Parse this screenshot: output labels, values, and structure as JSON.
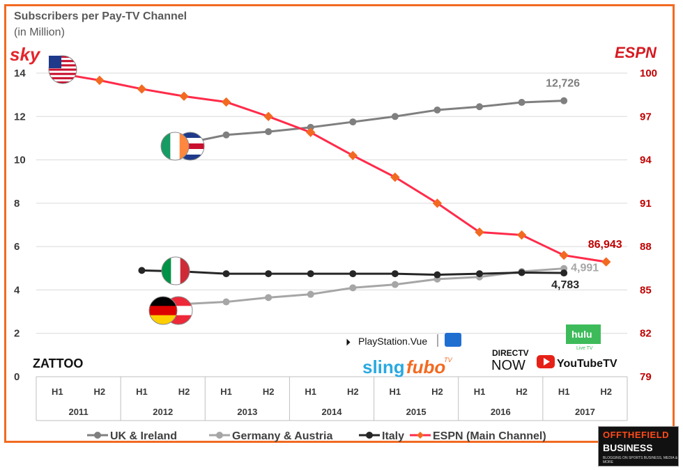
{
  "chart_data": {
    "type": "line",
    "title": "Subscribers per Pay-TV Channel",
    "subtitle": "(in Million)",
    "x_half_labels": [
      "H1",
      "H2",
      "H1",
      "H2",
      "H1",
      "H2",
      "H1",
      "H2",
      "H1",
      "H2",
      "H1",
      "H2",
      "H1",
      "H2"
    ],
    "x_year_labels": [
      "2011",
      "2012",
      "2013",
      "2014",
      "2015",
      "2016",
      "2017"
    ],
    "left_axis": {
      "ylim": [
        0,
        14
      ],
      "ticks": [
        "0",
        "2",
        "4",
        "6",
        "8",
        "10",
        "12",
        "14"
      ]
    },
    "right_axis": {
      "ylim": [
        79,
        100
      ],
      "ticks": [
        "79",
        "82",
        "85",
        "88",
        "91",
        "94",
        "97",
        "100"
      ]
    },
    "series": [
      {
        "name": "UK & Ireland",
        "axis": "left",
        "color": "#7f7f7f",
        "marker": "circle",
        "values": [
          null,
          null,
          null,
          10.75,
          11.15,
          11.3,
          11.5,
          11.75,
          12.0,
          12.3,
          12.45,
          12.65,
          12.726
        ]
      },
      {
        "name": "Germany & Austria",
        "axis": "left",
        "color": "#a6a6a6",
        "marker": "circle",
        "values": [
          null,
          null,
          null,
          3.35,
          3.45,
          3.65,
          3.8,
          4.1,
          4.25,
          4.5,
          4.6,
          4.85,
          4.991
        ]
      },
      {
        "name": "Italy",
        "axis": "left",
        "color": "#262626",
        "marker": "circle",
        "values": [
          null,
          null,
          4.9,
          4.85,
          4.75,
          4.75,
          4.75,
          4.75,
          4.75,
          4.7,
          4.75,
          4.8,
          4.783
        ]
      },
      {
        "name": "ESPN (Main Channel)",
        "axis": "right",
        "color": "#ff2b4a",
        "marker": "diamond",
        "values": [
          100,
          99.5,
          98.9,
          98.4,
          98.0,
          97.0,
          95.9,
          94.3,
          92.8,
          91.0,
          89.0,
          88.8,
          87.4,
          86.943
        ]
      }
    ],
    "end_labels": [
      {
        "series": "UK & Ireland",
        "text": "12,726",
        "color": "#7f7f7f"
      },
      {
        "series": "Germany & Austria",
        "text": "4,991",
        "color": "#a6a6a6"
      },
      {
        "series": "Italy",
        "text": "4,783",
        "color": "#262626"
      },
      {
        "series": "ESPN (Main Channel)",
        "text": "86,943",
        "color": "#c00000"
      }
    ],
    "grid": "horizontal",
    "legend_position": "bottom"
  },
  "logos": {
    "sky": "sky",
    "espn": "ESPN",
    "zattoo": "ZATTOO",
    "playstation_vue": "PlayStation.Vue",
    "sling": "sling",
    "fubo": "fubo",
    "fubo_tv": "TV",
    "directv": "DIRECTV",
    "now": "NOW",
    "youtubetv": "YouTubeTV",
    "hulu": "hulu",
    "hulu_live": "Live TV"
  },
  "badge": {
    "line1": "OFFTHEFIELD",
    "line2": "BUSINESS",
    "line3": "BLOGGING ON SPORTS BUSINESS, MEDIA & MORE"
  },
  "colors": {
    "frame": "#f26a21",
    "espn_red": "#c00000"
  }
}
